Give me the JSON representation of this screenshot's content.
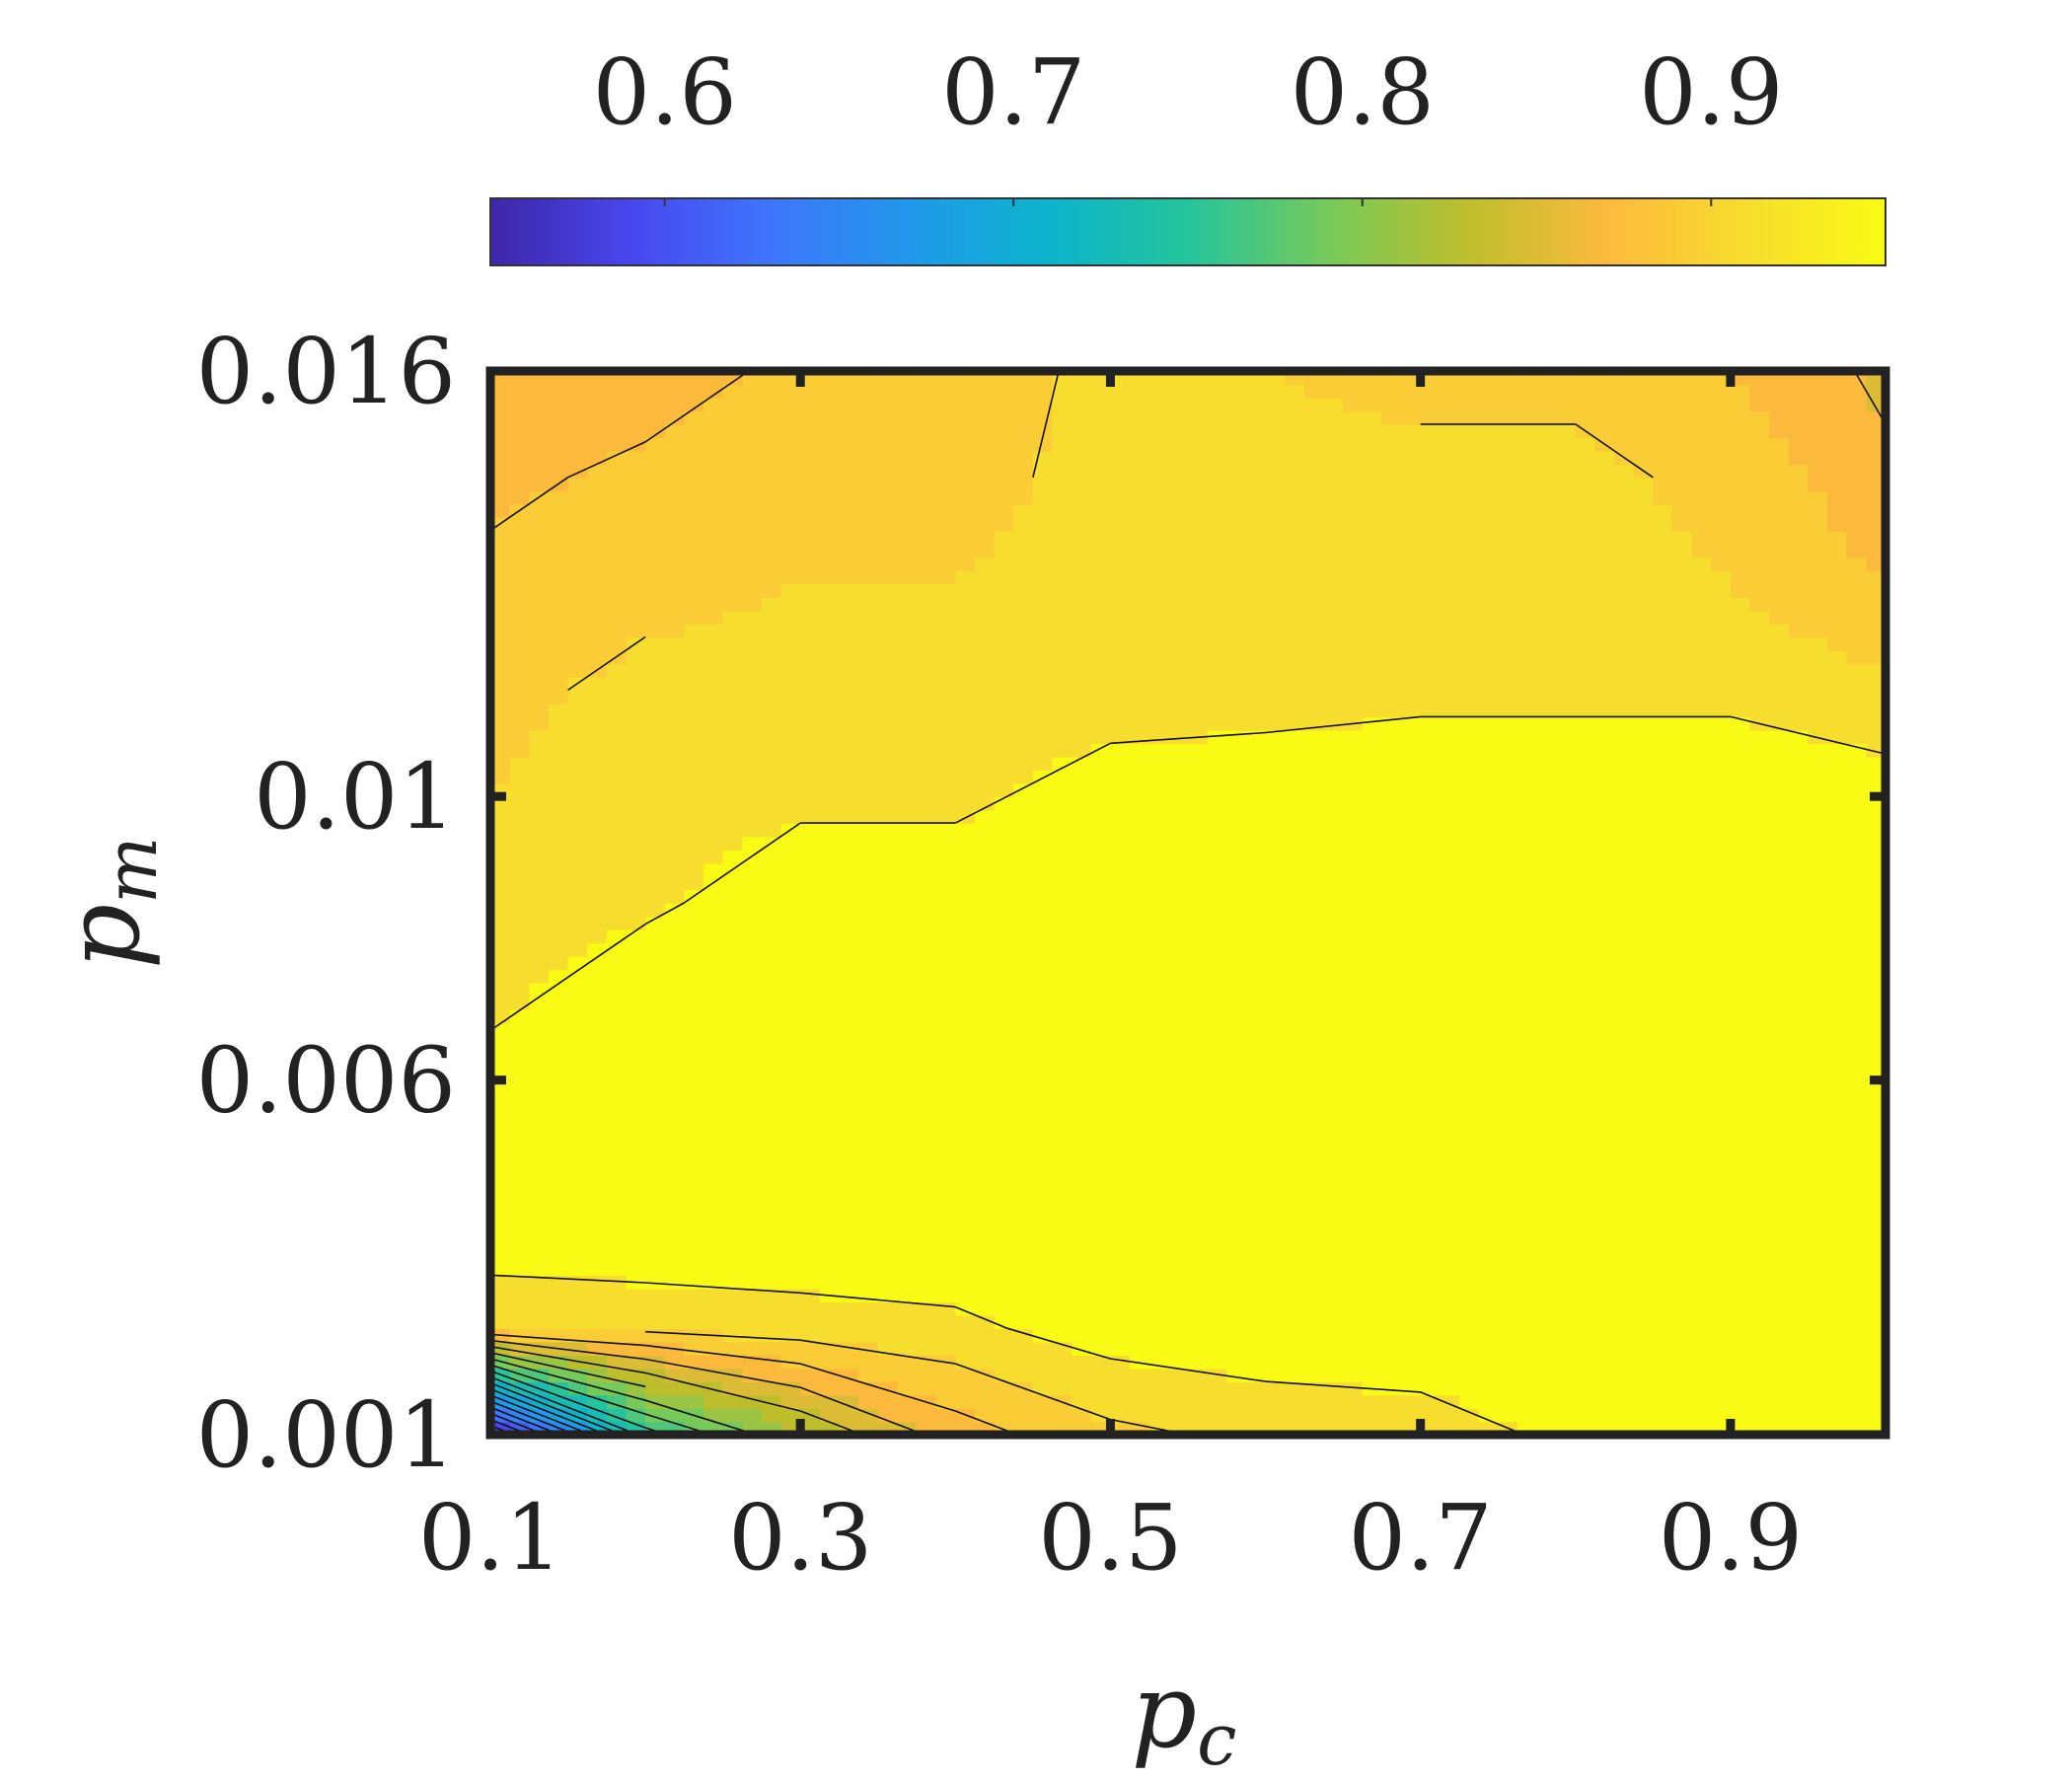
{
  "chart_data": {
    "type": "contour",
    "xlabel": "p",
    "xlabel_subscript": "c",
    "ylabel": "p",
    "ylabel_subscript": "m",
    "xlim": [
      0.1,
      1.0
    ],
    "ylim": [
      0.001,
      0.016
    ],
    "x_ticks": [
      {
        "value": 0.1,
        "label": "0.1"
      },
      {
        "value": 0.3,
        "label": "0.3"
      },
      {
        "value": 0.5,
        "label": "0.5"
      },
      {
        "value": 0.7,
        "label": "0.7"
      },
      {
        "value": 0.9,
        "label": "0.9"
      }
    ],
    "y_ticks": [
      {
        "value": 0.001,
        "label": "0.001"
      },
      {
        "value": 0.006,
        "label": "0.006"
      },
      {
        "value": 0.01,
        "label": "0.01"
      },
      {
        "value": 0.016,
        "label": "0.016"
      }
    ],
    "colorbar": {
      "orientation": "horizontal",
      "placement": "top",
      "colormap": "parula",
      "range": [
        0.55,
        0.95
      ],
      "ticks": [
        {
          "value": 0.6,
          "label": "0.6"
        },
        {
          "value": 0.7,
          "label": "0.7"
        },
        {
          "value": 0.8,
          "label": "0.8"
        },
        {
          "value": 0.9,
          "label": "0.9"
        }
      ]
    },
    "x": [
      0.1,
      0.2,
      0.3,
      0.4,
      0.5,
      0.6,
      0.7,
      0.8,
      0.9,
      1.0
    ],
    "y": [
      0.001,
      0.0025,
      0.004,
      0.0055,
      0.007,
      0.0085,
      0.01,
      0.0115,
      0.013,
      0.0145,
      0.016
    ],
    "z": [
      [
        0.55,
        0.75,
        0.82,
        0.87,
        0.895,
        0.905,
        0.91,
        0.925,
        0.93,
        0.935
      ],
      [
        0.9,
        0.905,
        0.91,
        0.915,
        0.93,
        0.935,
        0.935,
        0.935,
        0.94,
        0.94
      ],
      [
        0.94,
        0.94,
        0.94,
        0.94,
        0.94,
        0.94,
        0.94,
        0.94,
        0.94,
        0.94
      ],
      [
        0.94,
        0.94,
        0.94,
        0.94,
        0.94,
        0.94,
        0.94,
        0.94,
        0.94,
        0.94
      ],
      [
        0.915,
        0.94,
        0.94,
        0.94,
        0.94,
        0.94,
        0.94,
        0.94,
        0.94,
        0.94
      ],
      [
        0.905,
        0.915,
        0.935,
        0.935,
        0.94,
        0.94,
        0.94,
        0.94,
        0.94,
        0.94
      ],
      [
        0.9,
        0.91,
        0.915,
        0.915,
        0.93,
        0.935,
        0.935,
        0.935,
        0.935,
        0.93
      ],
      [
        0.895,
        0.905,
        0.905,
        0.905,
        0.91,
        0.91,
        0.915,
        0.915,
        0.915,
        0.905
      ],
      [
        0.885,
        0.895,
        0.9,
        0.9,
        0.905,
        0.905,
        0.905,
        0.905,
        0.9,
        0.88
      ],
      [
        0.875,
        0.885,
        0.895,
        0.895,
        0.905,
        0.905,
        0.905,
        0.905,
        0.895,
        0.865
      ],
      [
        0.86,
        0.87,
        0.885,
        0.89,
        0.905,
        0.9,
        0.895,
        0.895,
        0.88,
        0.855
      ]
    ],
    "levels": [
      0.56,
      0.58,
      0.6,
      0.62,
      0.64,
      0.66,
      0.68,
      0.7,
      0.72,
      0.74,
      0.76,
      0.78,
      0.8,
      0.82,
      0.84,
      0.86,
      0.88,
      0.9,
      0.92
    ]
  }
}
